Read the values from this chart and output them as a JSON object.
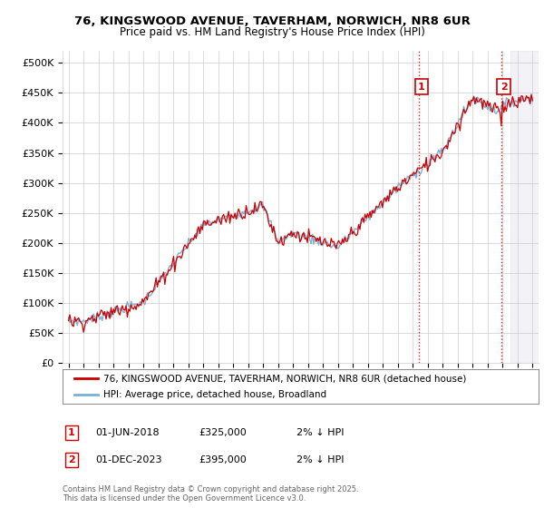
{
  "title_line1": "76, KINGSWOOD AVENUE, TAVERHAM, NORWICH, NR8 6UR",
  "title_line2": "Price paid vs. HM Land Registry's House Price Index (HPI)",
  "ylim": [
    0,
    520000
  ],
  "yticks": [
    0,
    50000,
    100000,
    150000,
    200000,
    250000,
    300000,
    350000,
    400000,
    450000,
    500000
  ],
  "ytick_labels": [
    "£0",
    "£50K",
    "£100K",
    "£150K",
    "£200K",
    "£250K",
    "£300K",
    "£350K",
    "£400K",
    "£450K",
    "£500K"
  ],
  "hpi_color": "#7bafd4",
  "price_color": "#cc0000",
  "vline_color": "#cc0000",
  "bg_color": "#ffffff",
  "plot_bg_color": "#ffffff",
  "grid_color": "#cccccc",
  "legend_label_price": "76, KINGSWOOD AVENUE, TAVERHAM, NORWICH, NR8 6UR (detached house)",
  "legend_label_hpi": "HPI: Average price, detached house, Broadland",
  "sale1_label": "1",
  "sale1_date": "01-JUN-2018",
  "sale1_price": "£325,000",
  "sale1_note": "2% ↓ HPI",
  "sale2_label": "2",
  "sale2_date": "01-DEC-2023",
  "sale2_price": "£395,000",
  "sale2_note": "2% ↓ HPI",
  "footer": "Contains HM Land Registry data © Crown copyright and database right 2025.\nThis data is licensed under the Open Government Licence v3.0.",
  "sale1_year": 2018.42,
  "sale2_year": 2023.92,
  "sale1_value": 325000,
  "sale2_value": 395000
}
